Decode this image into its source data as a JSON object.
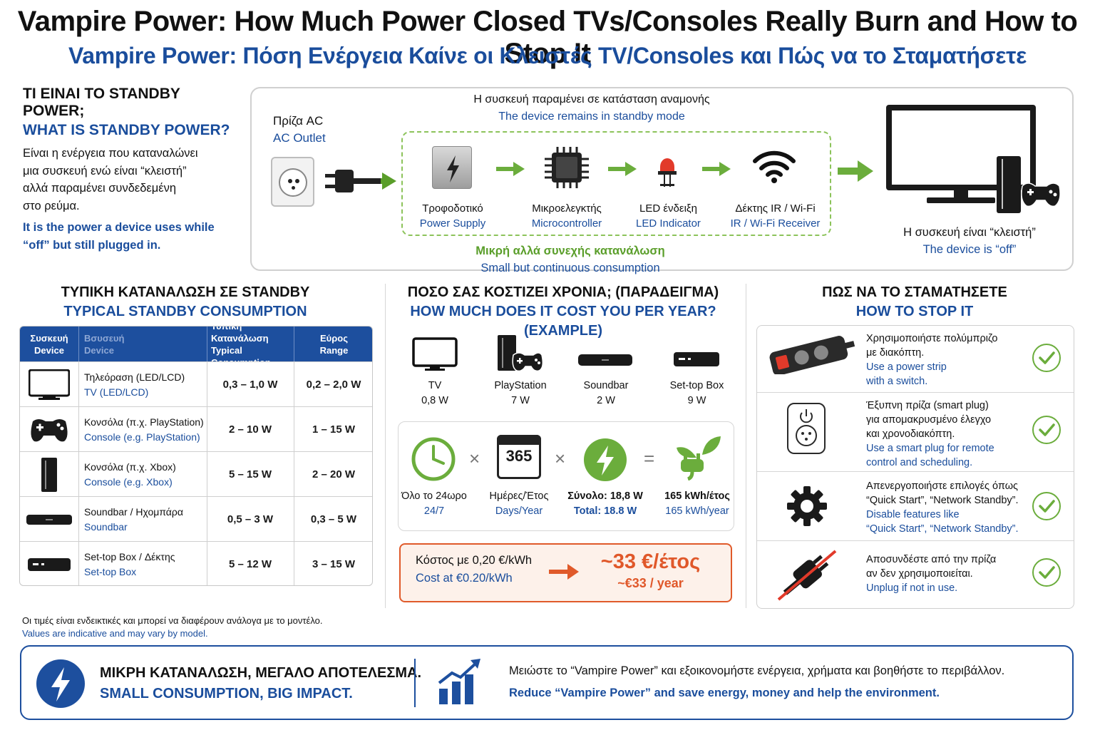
{
  "header": {
    "title": "Vampire Power: How Much Power Closed TVs/Consoles Really Burn and How to Stop It",
    "subtitle": "Vampire Power: Πόση Ενέργεια Καίνε οι Κλειστές TV/Consoles και Πώς να το Σταματήσετε"
  },
  "what_is": {
    "heading_gr": "ΤΙ ΕΙΝΑΙ ΤΟ STANDBY POWER;",
    "heading_en": "WHAT IS STANDBY POWER?",
    "body_gr": [
      "Είναι η ενέργεια που καταναλώνει",
      "μια συσκευή ενώ είναι “κλειστή”",
      "αλλά παραμένει συνδεδεμένη",
      "στο ρεύμα."
    ],
    "body_en": [
      "It is the power a device uses while",
      "“off” but still plugged in."
    ]
  },
  "diagram": {
    "outlet_gr": "Πρίζα AC",
    "outlet_en": "AC Outlet",
    "standby_gr": "Η συσκευή παραμένει σε κατάσταση αναμονής",
    "standby_en": "The device remains in standby mode",
    "components": [
      {
        "gr": "Τροφοδοτικό",
        "en": "Power Supply",
        "icon": "power-supply-icon"
      },
      {
        "gr": "Μικροελεγκτής",
        "en": "Microcontroller",
        "icon": "chip-icon"
      },
      {
        "gr": "LED ένδειξη",
        "en": "LED Indicator",
        "icon": "led-icon"
      },
      {
        "gr": "Δέκτης IR / Wi-Fi",
        "en": "IR / Wi-Fi Receiver",
        "icon": "wifi-icon"
      }
    ],
    "consumption_gr": "Μικρή αλλά συνεχής κατανάλωση",
    "consumption_en": "Small but continuous consumption",
    "off_gr": "Η συσκευή είναι “κλειστή”",
    "off_en": "The device is “off”"
  },
  "typical": {
    "heading_gr": "ΤΥΠΙΚΗ ΚΑΤΑΝΑΛΩΣΗ ΣΕ STANDBY",
    "heading_en": "TYPICAL STANDBY CONSUMPTION",
    "columns": [
      {
        "gr": "Συσκευή",
        "en": "Device"
      },
      {
        "gr": "Βσυσευή",
        "en": "Device"
      },
      {
        "gr": "Τυπική Κατανάλωση",
        "en": "Typical Consumption"
      },
      {
        "gr": "Εύρος",
        "en": "Range"
      }
    ],
    "rows": [
      {
        "gr": "Τηλεόραση (LED/LCD)",
        "en": "TV (LED/LCD)",
        "typical": "0,3 – 1,0 W",
        "range": "0,2 – 2,0 W",
        "icon": "tv-icon"
      },
      {
        "gr": "Κονσόλα (π.χ. PlayStation)",
        "en": "Console (e.g. PlayStation)",
        "typical": "2 – 10 W",
        "range": "1 – 15 W",
        "icon": "gamepad-icon"
      },
      {
        "gr": "Κονσόλα (π.χ. Xbox)",
        "en": "Console (e.g. Xbox)",
        "typical": "5 – 15 W",
        "range": "2 – 20 W",
        "icon": "xbox-console-icon"
      },
      {
        "gr": "Soundbar / Ηχομπάρα",
        "en": "Soundbar",
        "typical": "0,5 – 3 W",
        "range": "0,3 – 5 W",
        "icon": "soundbar-icon"
      },
      {
        "gr": "Set-top Box / Δέκτης",
        "en": "Set-top Box",
        "typical": "5 – 12 W",
        "range": "3 – 15 W",
        "icon": "settop-box-icon"
      }
    ]
  },
  "cost": {
    "heading_gr": "ΠΟΣΟ ΣΑΣ ΚΟΣΤΙΖΕΙ ΧΡΟΝΙΑ; (ΠΑΡΑΔΕΙΓΜΑ)",
    "heading_en": "HOW MUCH DOES IT COST YOU PER YEAR? (EXAMPLE)",
    "devices": [
      {
        "name": "TV",
        "watts": "0,8 W",
        "icon": "tv-icon"
      },
      {
        "name": "PlayStation",
        "watts": "7 W",
        "icon": "playstation-icon"
      },
      {
        "name": "Soundbar",
        "watts": "2 W",
        "icon": "soundbar-icon"
      },
      {
        "name": "Set-top Box",
        "watts": "9 W",
        "icon": "settop-box-icon"
      }
    ],
    "calc": [
      {
        "gr": "Όλο το 24ωρο",
        "en": "24/7",
        "icon": "clock-icon"
      },
      {
        "gr": "Ημέρες/Έτος",
        "en": "Days/Year",
        "icon": "calendar-icon",
        "value": "365"
      },
      {
        "gr": "Σύνολο: 18,8 W",
        "en": "Total: 18.8 W",
        "icon": "bolt-icon"
      },
      {
        "gr": "165 kWh/έτος",
        "en": "165 kWh/year",
        "icon": "eco-plug-icon"
      }
    ],
    "op_times": "×",
    "op_equals": "=",
    "rate_gr": "Κόστος με 0,20 €/kWh",
    "rate_en": "Cost at €0.20/kWh",
    "result_gr": "~33 €/έτος",
    "result_en": "~€33 / year",
    "colors": {
      "accent": "#e05a2a",
      "green": "#5a9e2a",
      "blue": "#1a4d9c"
    }
  },
  "stop": {
    "heading_gr": "ΠΩΣ ΝΑ ΤΟ ΣΤΑΜΑΤΗΣΕΤΕ",
    "heading_en": "HOW TO STOP IT",
    "items": [
      {
        "gr": [
          "Χρησιμοποιήστε πολύμπριζο",
          "με διακόπτη."
        ],
        "en": [
          "Use a power strip",
          "with a switch."
        ],
        "icon": "power-strip-icon"
      },
      {
        "gr": [
          "Έξυπνη πρίζα (smart plug)",
          "για απομακρυσμένο έλεγχο",
          "και χρονοδιακόπτη."
        ],
        "en": [
          "Use a smart plug for remote",
          "control and scheduling."
        ],
        "icon": "smart-plug-icon"
      },
      {
        "gr": [
          "Απενεργοποιήστε επιλογές όπως",
          "“Quick Start”, “Network Standby”."
        ],
        "en": [
          "Disable features like",
          "“Quick Start”, “Network Standby”."
        ],
        "icon": "gear-icon"
      },
      {
        "gr": [
          "Αποσυνδέστε από την πρίζα",
          "αν δεν χρησιμοποιείται."
        ],
        "en": [
          "Unplug if not in use."
        ],
        "icon": "unplug-icon"
      }
    ]
  },
  "note": {
    "gr": "Οι τιμές είναι ενδεικτικές και μπορεί να διαφέρουν ανάλογα με το μοντέλο.",
    "en": "Values are indicative and may vary by model."
  },
  "footer": {
    "left_gr": "ΜΙΚΡΗ ΚΑΤΑΝΑΛΩΣΗ, ΜΕΓΑΛΟ ΑΠΟΤΕΛΕΣΜΑ.",
    "left_en": "SMALL CONSUMPTION, BIG IMPACT.",
    "right_gr": "Μειώστε το “Vampire Power” και εξοικονομήστε ενέργεια, χρήματα και βοηθήστε το περιβάλλον.",
    "right_en": "Reduce “Vampire Power” and save energy, money and help the environment."
  }
}
